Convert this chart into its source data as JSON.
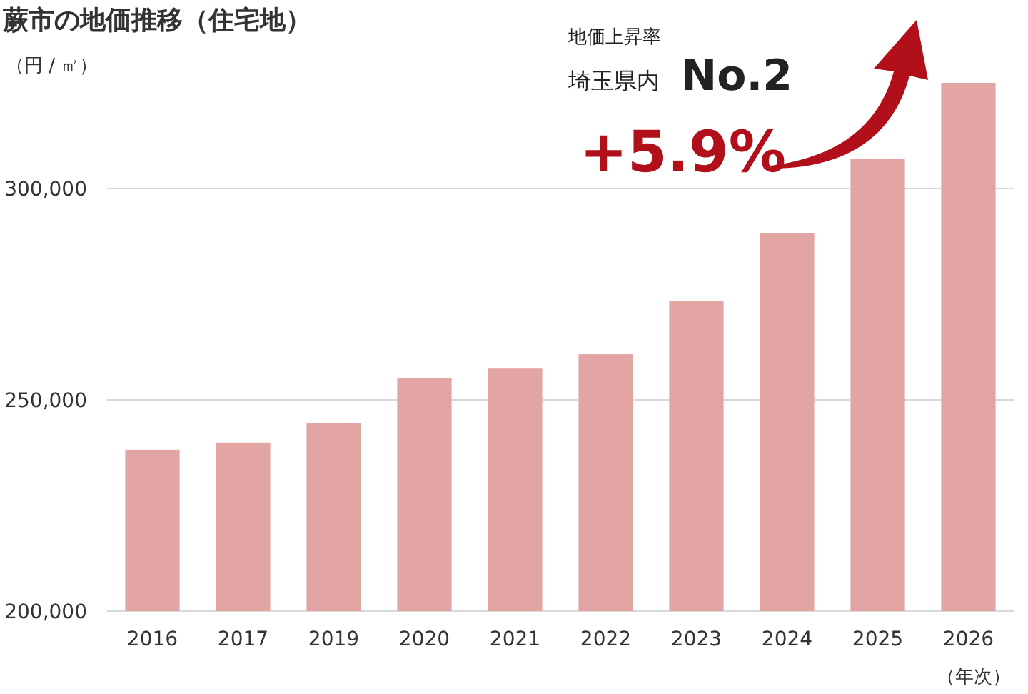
{
  "chart_data": {
    "type": "bar",
    "title": "蕨市の地価推移（住宅地）",
    "ylabel": "（円 / ㎡）",
    "xlabel": "（年次）",
    "categories": [
      "2016",
      "2017",
      "2019",
      "2020",
      "2021",
      "2022",
      "2023",
      "2024",
      "2025",
      "2026"
    ],
    "values": [
      238200,
      239900,
      244600,
      255100,
      257400,
      260800,
      273300,
      289500,
      307100,
      325000
    ],
    "color": "#e3a4a4",
    "ylim": [
      200000,
      325000
    ],
    "yticks": [
      {
        "value": 200000,
        "label": "200,000"
      },
      {
        "value": 250000,
        "label": "250,000"
      },
      {
        "value": 300000,
        "label": "300,000"
      }
    ],
    "grid": "y",
    "annotations": [
      "地価上昇率",
      "埼玉県内",
      "No.2",
      "+5.9%"
    ]
  }
}
